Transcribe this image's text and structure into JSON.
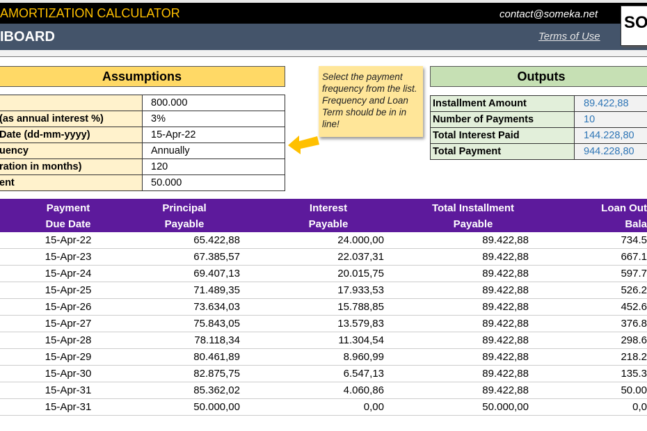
{
  "header": {
    "app_title": "AMORTIZATION CALCULATOR",
    "contact": "contact@someka.net",
    "page_title": "IBOARD",
    "terms_link": "Terms of Use",
    "logo_text": "SO"
  },
  "assumptions": {
    "title": "Assumptions",
    "rows": [
      {
        "label": "",
        "value": "800.000"
      },
      {
        "label": "(as annual interest %)",
        "value": "3%"
      },
      {
        "label": " Date (dd-mm-yyyy)",
        "value": "15-Apr-22"
      },
      {
        "label": "uency",
        "value": "Annually"
      },
      {
        "label": "ration in months)",
        "value": "120"
      },
      {
        "label": "ent",
        "value": "50.000"
      }
    ]
  },
  "note": {
    "text": "Select the payment frequency from the list. Frequency and Loan Term should be in in line!",
    "arrow_icon": "arrow-left-icon"
  },
  "outputs": {
    "title": "Outputs",
    "rows": [
      {
        "label": "Installment Amount",
        "value": "89.422,88"
      },
      {
        "label": "Number of Payments",
        "value": "10"
      },
      {
        "label": "Total Interest Paid",
        "value": "144.228,80"
      },
      {
        "label": "Total Payment",
        "value": "944.228,80"
      }
    ]
  },
  "schedule": {
    "columns": [
      {
        "line1": "Payment",
        "line2": "Due Date"
      },
      {
        "line1": "Principal",
        "line2": "Payable"
      },
      {
        "line1": "Interest",
        "line2": "Payable"
      },
      {
        "line1": "Total Installment",
        "line2": "Payable"
      },
      {
        "line1": "Loan Out",
        "line2": "Bala"
      }
    ],
    "rows": [
      [
        "15-Apr-22",
        "65.422,88",
        "24.000,00",
        "89.422,88",
        "734.5"
      ],
      [
        "15-Apr-23",
        "67.385,57",
        "22.037,31",
        "89.422,88",
        "667.1"
      ],
      [
        "15-Apr-24",
        "69.407,13",
        "20.015,75",
        "89.422,88",
        "597.7"
      ],
      [
        "15-Apr-25",
        "71.489,35",
        "17.933,53",
        "89.422,88",
        "526.2"
      ],
      [
        "15-Apr-26",
        "73.634,03",
        "15.788,85",
        "89.422,88",
        "452.6"
      ],
      [
        "15-Apr-27",
        "75.843,05",
        "13.579,83",
        "89.422,88",
        "376.8"
      ],
      [
        "15-Apr-28",
        "78.118,34",
        "11.304,54",
        "89.422,88",
        "298.6"
      ],
      [
        "15-Apr-29",
        "80.461,89",
        "8.960,99",
        "89.422,88",
        "218.2"
      ],
      [
        "15-Apr-30",
        "82.875,75",
        "6.547,13",
        "89.422,88",
        "135.3"
      ],
      [
        "15-Apr-31",
        "85.362,02",
        "4.060,86",
        "89.422,88",
        "50.00"
      ],
      [
        "15-Apr-31",
        "50.000,00",
        "0,00",
        "50.000,00",
        "0,0"
      ]
    ]
  },
  "colors": {
    "accent_gold": "#ffc000",
    "header_purple": "#5d1a9c",
    "slate": "#44546a",
    "output_value_blue": "#2e75b6"
  }
}
